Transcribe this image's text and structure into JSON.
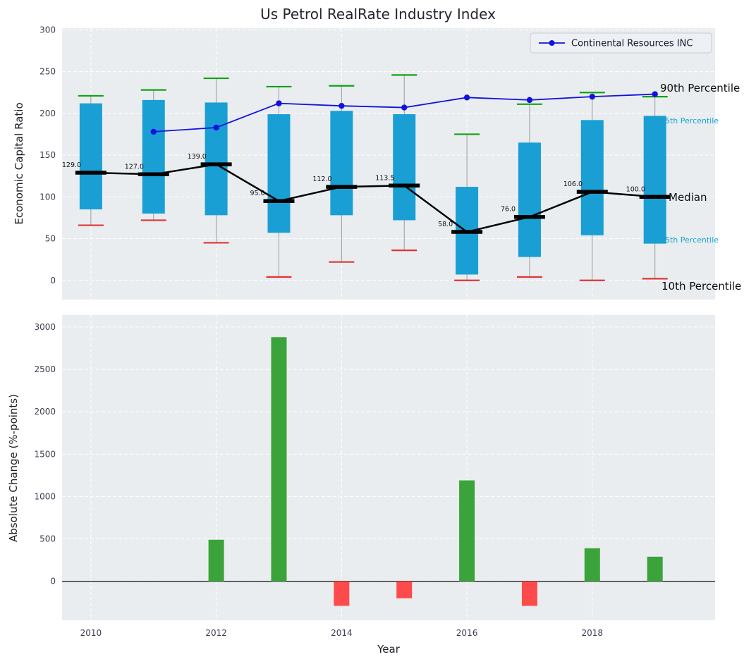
{
  "title": "Us Petrol RealRate Industry Index",
  "legend": {
    "label": "Continental Resources INC"
  },
  "axes": {
    "xlabel": "Year",
    "xticks": [
      2010,
      2012,
      2014,
      2016,
      2018
    ],
    "top": {
      "ylabel": "Economic Capital Ratio",
      "yticks": [
        0,
        50,
        100,
        150,
        200,
        250,
        300
      ]
    },
    "bottom": {
      "ylabel": "Absolute Change (%-points)",
      "yticks": [
        0,
        500,
        1000,
        1500,
        2000,
        2500,
        3000
      ]
    }
  },
  "annotations": {
    "p90": "90th Percentile",
    "p75": "75th Percentile",
    "median": "Median",
    "p25": "25th Percentile",
    "p10": "10th Percentile"
  },
  "colors": {
    "panel_bg": "#e9edf0",
    "grid": "#ffffff",
    "box": "#199fd4",
    "median": "#000000",
    "cap_high": "#12a312",
    "cap_low": "#e23434",
    "whisker": "#9a9a9a",
    "line": "#1212dd",
    "bar_positive": "#3aa33a",
    "bar_negative": "#fd4b4b",
    "accent_cyan": "#18a3cc"
  },
  "chart_data": [
    {
      "type": "boxplot",
      "title": "Us Petrol RealRate Industry Index",
      "ylabel": "Economic Capital Ratio",
      "ylim": [
        -23,
        302
      ],
      "grid": true,
      "legend_position": "upper right",
      "years": [
        2010,
        2011,
        2012,
        2013,
        2014,
        2015,
        2016,
        2017,
        2018,
        2019
      ],
      "percentile_10": [
        66,
        72,
        45,
        4,
        22,
        36,
        0,
        4,
        0,
        2
      ],
      "percentile_25": [
        85,
        80,
        78,
        57,
        78,
        72,
        7,
        28,
        54,
        44
      ],
      "median": [
        129.0,
        127.0,
        139.0,
        95.0,
        112.0,
        113.5,
        58.0,
        76.0,
        106.0,
        100.0
      ],
      "median_labels": [
        "129.0",
        "127.0",
        "139.0",
        "95.0",
        "112.0",
        "113.5",
        "58.0",
        "76.0",
        "106.0",
        "100.0"
      ],
      "percentile_75": [
        212,
        216,
        213,
        199,
        203,
        199,
        112,
        165,
        192,
        197
      ],
      "percentile_90": [
        221,
        228,
        242,
        232,
        233,
        246,
        175,
        211,
        225,
        220
      ],
      "line_series": {
        "name": "Continental Resources INC",
        "x": [
          2011,
          2012,
          2013,
          2014,
          2015,
          2016,
          2017,
          2018,
          2019
        ],
        "y": [
          178,
          183,
          212,
          209,
          207,
          219,
          216,
          220,
          223
        ]
      }
    },
    {
      "type": "bar",
      "ylabel": "Absolute Change (%-points)",
      "xlabel": "Year",
      "ylim": [
        -460,
        3140
      ],
      "grid": true,
      "years": [
        2010,
        2011,
        2012,
        2013,
        2014,
        2015,
        2016,
        2017,
        2018,
        2019
      ],
      "values": [
        0,
        0,
        490,
        2880,
        -290,
        -200,
        1190,
        -290,
        390,
        290
      ]
    }
  ]
}
